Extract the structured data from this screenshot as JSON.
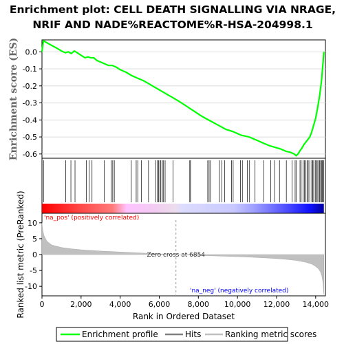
{
  "title_line1": "Enrichment plot: CELL DEATH SIGNALLING VIA NRAGE,",
  "title_line2": "NRIF AND NADE%REACTOME%R-HSA-204998.1",
  "chart_data": {
    "type": "line",
    "es_panel": {
      "ylabel": "Enrichment score (ES)",
      "yticks": [
        0.0,
        -0.1,
        -0.2,
        -0.3,
        -0.4,
        -0.5,
        -0.6
      ],
      "ytick_labels": [
        "0.0",
        "-0.1",
        "-0.2",
        "-0.3",
        "-0.4",
        "-0.5",
        "-0.6"
      ],
      "ylim": [
        -0.625,
        0.07
      ],
      "series": [
        {
          "name": "Enrichment profile",
          "color": "#00ff00",
          "x": [
            0,
            70,
            300,
            700,
            1000,
            1200,
            1350,
            1500,
            1650,
            1800,
            2000,
            2200,
            2350,
            2500,
            2650,
            2800,
            3000,
            3200,
            3400,
            3600,
            3800,
            4000,
            4300,
            4600,
            4900,
            5200,
            5500,
            5800,
            6100,
            6400,
            6700,
            7000,
            7400,
            7800,
            8200,
            8600,
            9000,
            9400,
            9800,
            10200,
            10600,
            11000,
            11300,
            11600,
            11900,
            12200,
            12500,
            12700,
            12900,
            13000,
            13100,
            13200,
            13300,
            13400,
            13500,
            13600,
            13700,
            13800,
            13900,
            14000,
            14100,
            14200,
            14300,
            14380,
            14420
          ],
          "y": [
            0.0,
            0.065,
            0.05,
            0.025,
            0.005,
            -0.005,
            0.0,
            -0.01,
            0.005,
            -0.005,
            -0.02,
            -0.035,
            -0.03,
            -0.035,
            -0.035,
            -0.05,
            -0.06,
            -0.07,
            -0.08,
            -0.08,
            -0.09,
            -0.105,
            -0.12,
            -0.14,
            -0.155,
            -0.17,
            -0.19,
            -0.21,
            -0.23,
            -0.25,
            -0.27,
            -0.29,
            -0.32,
            -0.35,
            -0.38,
            -0.405,
            -0.43,
            -0.455,
            -0.47,
            -0.49,
            -0.5,
            -0.52,
            -0.535,
            -0.55,
            -0.56,
            -0.57,
            -0.585,
            -0.59,
            -0.6,
            -0.61,
            -0.6,
            -0.58,
            -0.565,
            -0.545,
            -0.53,
            -0.515,
            -0.5,
            -0.47,
            -0.43,
            -0.39,
            -0.33,
            -0.26,
            -0.17,
            -0.06,
            0.0
          ]
        }
      ]
    },
    "hits": [
      80,
      1210,
      1480,
      1690,
      2270,
      2420,
      2560,
      3180,
      3550,
      3620,
      3700,
      4570,
      4820,
      4900,
      5080,
      5450,
      5820,
      5890,
      5970,
      6040,
      6080,
      6160,
      6220,
      6300,
      6700,
      7560,
      7600,
      8480,
      8550,
      8620,
      9080,
      9200,
      9350,
      9700,
      9780,
      10150,
      10250,
      10500,
      10620,
      10900,
      11350,
      11700,
      11900,
      12150,
      12500,
      12800,
      12950,
      13000,
      13200,
      13260,
      13350,
      13420,
      13500,
      13560,
      13620,
      13700,
      13800,
      13850,
      13900,
      13980,
      14020,
      14080,
      14150,
      14200,
      14250,
      14300,
      14350,
      14380,
      14400
    ],
    "metric_panel": {
      "ylabel": "Ranked list metric (PreRanked)",
      "yticks": [
        10,
        5,
        0,
        -5,
        -10
      ],
      "ytick_labels": [
        "10",
        "5",
        "0",
        "-5",
        "-10"
      ],
      "ylim": [
        -13,
        13
      ],
      "series": [
        {
          "name": "Ranking metric scores",
          "color": "#c0c0c0",
          "x": [
            0,
            30,
            100,
            250,
            500,
            1000,
            1500,
            2000,
            3000,
            4000,
            5000,
            6000,
            6854,
            8000,
            9000,
            10000,
            11000,
            12000,
            12500,
            13000,
            13500,
            13800,
            14000,
            14150,
            14250,
            14320,
            14380,
            14420
          ],
          "y": [
            10.0,
            8.0,
            6.0,
            4.2,
            3.0,
            2.2,
            1.8,
            1.5,
            1.1,
            0.8,
            0.5,
            0.2,
            0.0,
            -0.25,
            -0.45,
            -0.65,
            -0.9,
            -1.25,
            -1.5,
            -1.85,
            -2.4,
            -3.0,
            -3.7,
            -4.5,
            -5.5,
            -6.8,
            -9.0,
            -12.5
          ]
        }
      ],
      "annotations": {
        "pos_label": "'na_pos' (positively correlated)",
        "neg_label": "'na_neg' (negatively correlated)",
        "zero_cross": "Zero cross at 6854",
        "zero_cross_x": 6854,
        "pos_color": "#ff0000",
        "neg_color": "#0000ff"
      }
    },
    "xaxis": {
      "xlabel": "Rank in Ordered Dataset",
      "xticks": [
        0,
        2000,
        4000,
        6000,
        8000,
        10000,
        12000,
        14000
      ],
      "xtick_labels": [
        "0",
        "2,000",
        "4,000",
        "6,000",
        "8,000",
        "10,000",
        "12,000",
        "14,000"
      ],
      "xlim": [
        0,
        14500
      ],
      "n": 14420
    },
    "legend": {
      "placement": "bottom",
      "entries": [
        {
          "label": "Enrichment profile",
          "color": "#00ff00"
        },
        {
          "label": "Hits",
          "color": "#808080"
        },
        {
          "label": "Ranking metric scores",
          "color": "#c0c0c0"
        }
      ]
    }
  }
}
